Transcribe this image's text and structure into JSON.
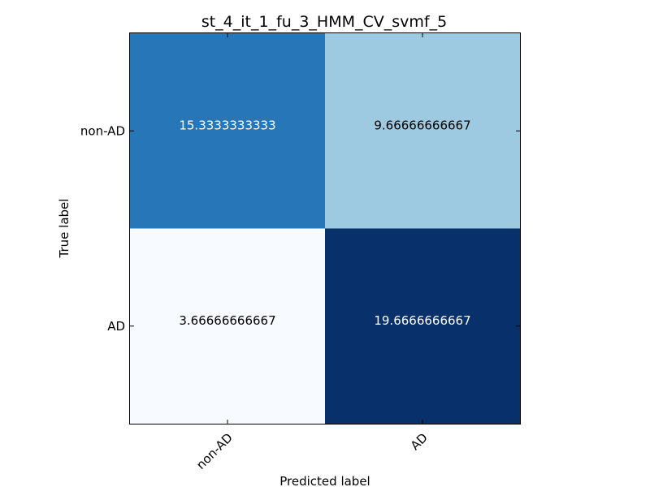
{
  "chart_data": {
    "type": "heatmap",
    "title": "st_4_it_1_fu_3_HMM_CV_svmf_5",
    "xlabel": "Predicted label",
    "ylabel": "True label",
    "x_categories": [
      "non-AD",
      "AD"
    ],
    "y_categories": [
      "non-AD",
      "AD"
    ],
    "values": [
      [
        15.3333333333,
        9.66666666667
      ],
      [
        3.66666666667,
        19.6666666667
      ]
    ],
    "value_labels": [
      [
        "15.3333333333",
        "9.66666666667"
      ],
      [
        "3.66666666667",
        "19.6666666667"
      ]
    ],
    "colormap": "Blues",
    "color_low": "#f7fbff",
    "color_high": "#08306b",
    "grid": false,
    "legend": "none"
  }
}
